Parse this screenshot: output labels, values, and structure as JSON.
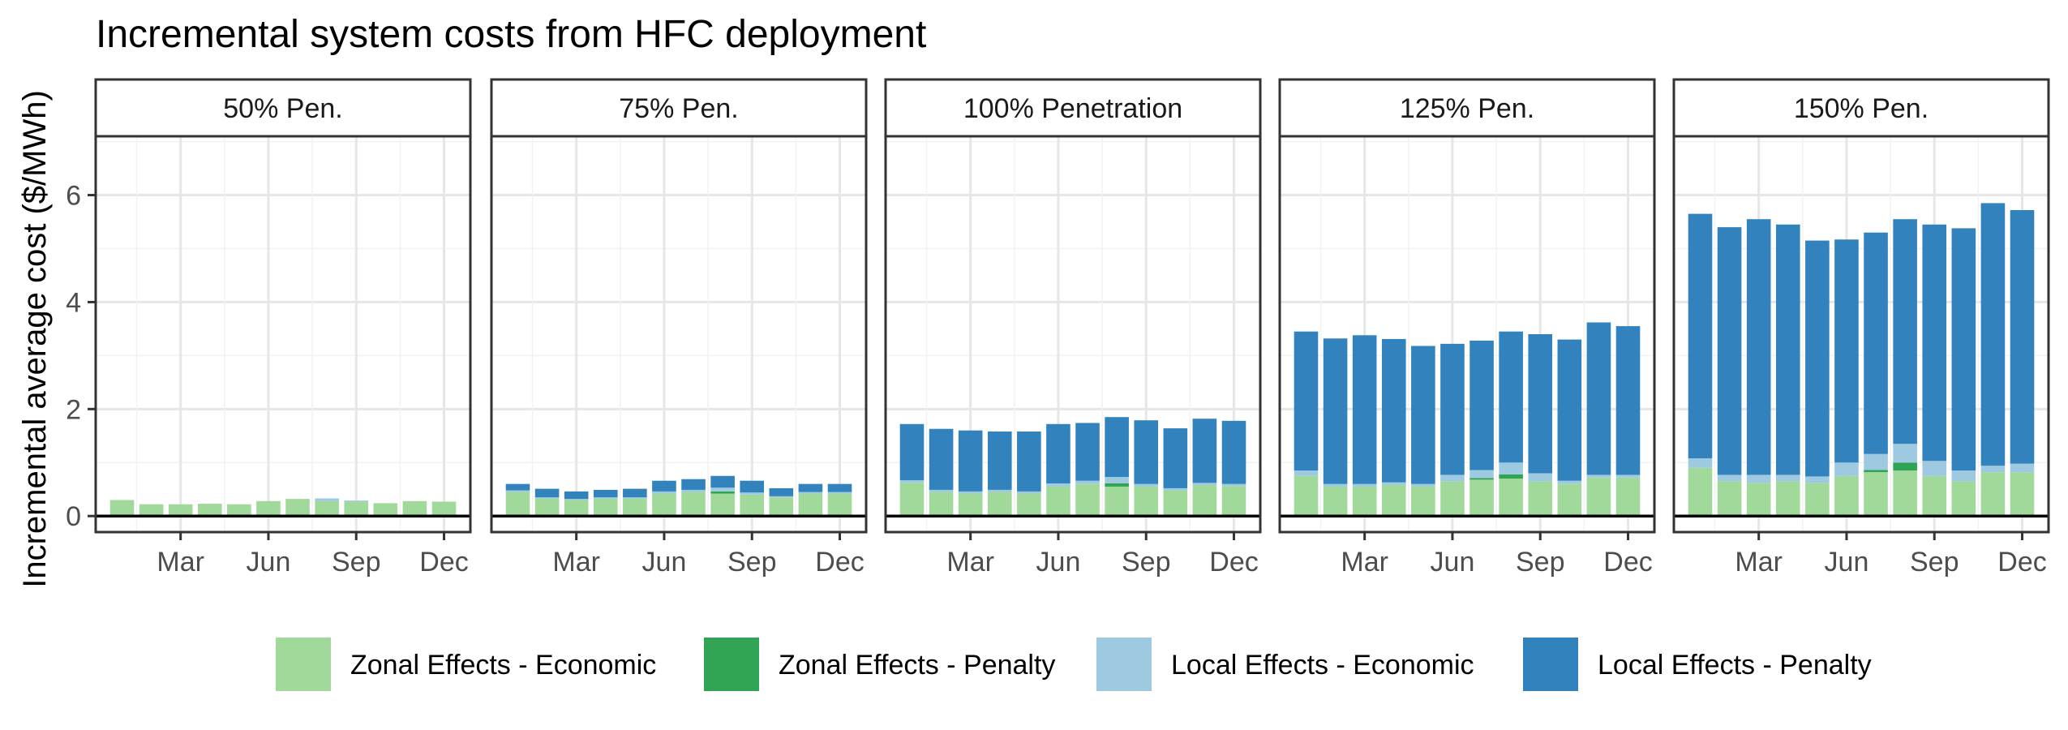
{
  "chart_data": {
    "type": "bar",
    "stacked": true,
    "faceted": true,
    "title": "Incremental system costs from HFC deployment",
    "xlabel": "",
    "ylabel": "Incremental average cost ($/MWh)",
    "ylim": [
      -0.3,
      7.1
    ],
    "yticks": [
      0,
      2,
      4,
      6
    ],
    "months": [
      "Jan",
      "Feb",
      "Mar",
      "Apr",
      "May",
      "Jun",
      "Jul",
      "Aug",
      "Sep",
      "Oct",
      "Nov",
      "Dec"
    ],
    "xtick_labels": [
      "Mar",
      "Jun",
      "Sep",
      "Dec"
    ],
    "grid": true,
    "legend_position": "bottom",
    "series": [
      {
        "name": "Zonal Effects - Economic",
        "color": "#a1d99b"
      },
      {
        "name": "Zonal Effects - Penalty",
        "color": "#31a354"
      },
      {
        "name": "Local Effects - Economic",
        "color": "#9ecae1"
      },
      {
        "name": "Local Effects - Penalty",
        "color": "#3182bd"
      }
    ],
    "panels": [
      {
        "label": "50% Pen.",
        "zonal_economic": [
          0.3,
          0.22,
          0.22,
          0.23,
          0.22,
          0.28,
          0.32,
          0.28,
          0.27,
          0.24,
          0.28,
          0.27
        ],
        "zonal_penalty": [
          0,
          0,
          0,
          0,
          0,
          0,
          0,
          0,
          0,
          0,
          0,
          0
        ],
        "local_economic": [
          0,
          0,
          0,
          0,
          0,
          0,
          0,
          0.05,
          0.02,
          0,
          0,
          0
        ],
        "local_penalty": [
          0,
          0,
          0,
          0,
          0,
          0,
          0,
          0,
          0,
          0,
          0,
          0
        ]
      },
      {
        "label": "75% Pen.",
        "zonal_economic": [
          0.45,
          0.33,
          0.3,
          0.33,
          0.33,
          0.42,
          0.45,
          0.42,
          0.4,
          0.35,
          0.42,
          0.42
        ],
        "zonal_penalty": [
          0,
          0,
          0,
          0,
          0,
          0,
          0,
          0.04,
          0,
          0,
          0,
          0
        ],
        "local_economic": [
          0.03,
          0.02,
          0.02,
          0.02,
          0.02,
          0.04,
          0.04,
          0.07,
          0.04,
          0.02,
          0.03,
          0.03
        ],
        "local_penalty": [
          0.12,
          0.16,
          0.14,
          0.14,
          0.16,
          0.2,
          0.2,
          0.22,
          0.22,
          0.15,
          0.15,
          0.15
        ]
      },
      {
        "label": "100% Penetration",
        "zonal_economic": [
          0.62,
          0.45,
          0.42,
          0.45,
          0.42,
          0.55,
          0.6,
          0.55,
          0.55,
          0.48,
          0.58,
          0.56
        ],
        "zonal_penalty": [
          0,
          0,
          0,
          0,
          0,
          0,
          0,
          0.06,
          0,
          0,
          0,
          0
        ],
        "local_economic": [
          0.05,
          0.04,
          0.04,
          0.04,
          0.04,
          0.06,
          0.06,
          0.12,
          0.05,
          0.04,
          0.04,
          0.04
        ],
        "local_penalty": [
          1.05,
          1.14,
          1.14,
          1.09,
          1.12,
          1.11,
          1.08,
          1.12,
          1.19,
          1.12,
          1.2,
          1.18
        ]
      },
      {
        "label": "125% Pen.",
        "zonal_economic": [
          0.75,
          0.55,
          0.55,
          0.58,
          0.55,
          0.65,
          0.68,
          0.7,
          0.65,
          0.6,
          0.72,
          0.72
        ],
        "zonal_penalty": [
          0,
          0,
          0,
          0,
          0,
          0,
          0.03,
          0.08,
          0,
          0,
          0,
          0
        ],
        "local_economic": [
          0.1,
          0.05,
          0.05,
          0.05,
          0.05,
          0.12,
          0.15,
          0.22,
          0.15,
          0.06,
          0.05,
          0.05
        ],
        "local_penalty": [
          2.6,
          2.72,
          2.78,
          2.68,
          2.58,
          2.45,
          2.42,
          2.45,
          2.6,
          2.64,
          2.85,
          2.78
        ]
      },
      {
        "label": "150% Pen.",
        "zonal_economic": [
          0.9,
          0.65,
          0.62,
          0.65,
          0.62,
          0.75,
          0.82,
          0.85,
          0.75,
          0.65,
          0.82,
          0.82
        ],
        "zonal_penalty": [
          0,
          0,
          0,
          0,
          0,
          0,
          0.04,
          0.15,
          0,
          0,
          0,
          0
        ],
        "local_economic": [
          0.18,
          0.12,
          0.15,
          0.12,
          0.12,
          0.25,
          0.3,
          0.35,
          0.28,
          0.2,
          0.12,
          0.16
        ],
        "local_penalty": [
          4.57,
          4.63,
          4.78,
          4.68,
          4.41,
          4.17,
          4.14,
          4.2,
          4.42,
          4.53,
          4.91,
          4.74
        ]
      }
    ]
  }
}
